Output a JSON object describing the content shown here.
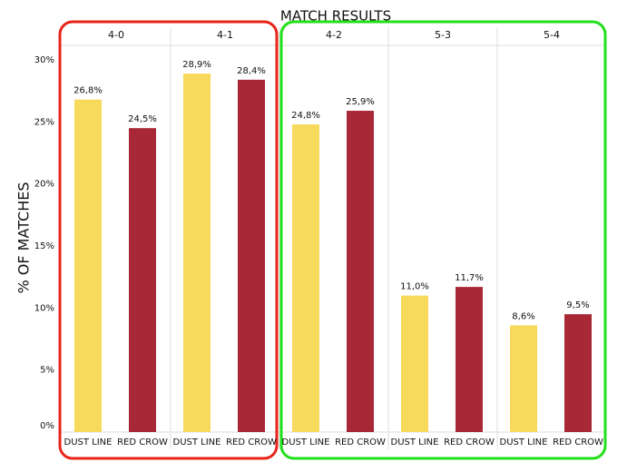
{
  "chart_data": {
    "type": "bar",
    "title": "MATCH RESULTS",
    "y_label": "% OF MATCHES",
    "categories": [
      "4-0",
      "4-1",
      "4-2",
      "5-3",
      "5-4"
    ],
    "series": [
      {
        "name": "DUST LINE",
        "color": "#f7d95c",
        "values": [
          26.8,
          28.9,
          24.8,
          11.0,
          8.6
        ],
        "value_labels": [
          "26,8%",
          "28,9%",
          "24,8%",
          "11,0%",
          "8,6%"
        ]
      },
      {
        "name": "RED CROW",
        "color": "#a82837",
        "values": [
          24.5,
          28.4,
          25.9,
          11.7,
          9.5
        ],
        "value_labels": [
          "24,5%",
          "28,4%",
          "25,9%",
          "11,7%",
          "9,5%"
        ]
      }
    ],
    "ylim": [
      0,
      30
    ],
    "yticks": [
      {
        "value": 0,
        "label": "0%"
      },
      {
        "value": 5,
        "label": "5%"
      },
      {
        "value": 10,
        "label": "10%"
      },
      {
        "value": 15,
        "label": "15%"
      },
      {
        "value": 20,
        "label": "20%"
      },
      {
        "value": 25,
        "label": "25%"
      },
      {
        "value": 30,
        "label": "30%"
      }
    ],
    "grid": false
  }
}
